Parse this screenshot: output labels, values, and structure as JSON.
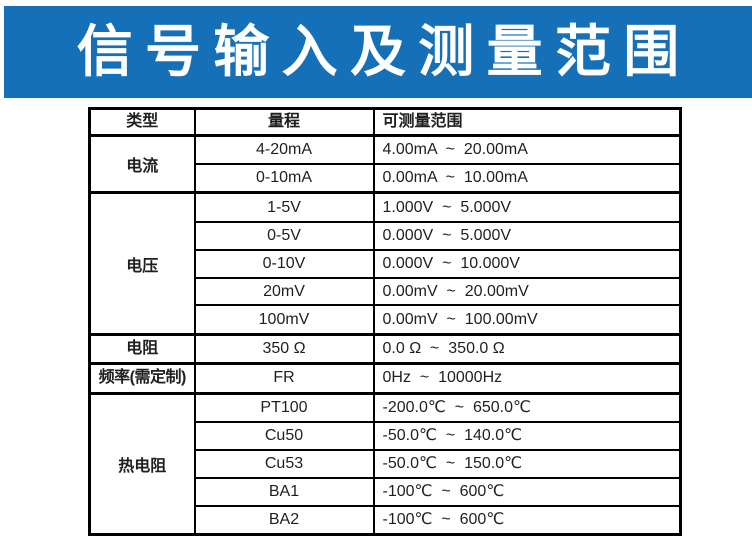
{
  "banner": {
    "title": "信号输入及测量范围"
  },
  "colors": {
    "banner_blue": "#1570b8",
    "title_white": "#ffffff",
    "border_black": "#000000",
    "text_dark": "#1f1f1f"
  },
  "table": {
    "headers": [
      "类型",
      "量程",
      "可测量范围"
    ],
    "rows": [
      {
        "type": "电流",
        "rowspan": 2,
        "range": "4-20mA",
        "measurable": "4.00mA  ~  20.00mA"
      },
      {
        "range": "0-10mA",
        "measurable": "0.00mA  ~  10.00mA"
      },
      {
        "type": "电压",
        "rowspan": 5,
        "range": "1-5V",
        "measurable": "1.000V  ~  5.000V"
      },
      {
        "range": "0-5V",
        "measurable": "0.000V  ~  5.000V"
      },
      {
        "range": "0-10V",
        "measurable": "0.000V  ~  10.000V"
      },
      {
        "range": "20mV",
        "measurable": "0.00mV  ~  20.00mV"
      },
      {
        "range": "100mV",
        "measurable": "0.00mV  ~  100.00mV"
      },
      {
        "type": "电阻",
        "rowspan": 1,
        "range": "350 Ω",
        "measurable": "0.0 Ω  ~  350.0 Ω"
      },
      {
        "type": "频率(需定制)",
        "rowspan": 1,
        "range": "FR",
        "measurable": "0Hz  ~  10000Hz"
      },
      {
        "type": "热电阻",
        "rowspan": 5,
        "range": "PT100",
        "measurable": "-200.0℃  ~  650.0℃"
      },
      {
        "range": "Cu50",
        "measurable": "-50.0℃  ~  140.0℃"
      },
      {
        "range": "Cu53",
        "measurable": "-50.0℃  ~  150.0℃"
      },
      {
        "range": "BA1",
        "measurable": "-100℃  ~  600℃"
      },
      {
        "range": "BA2",
        "measurable": "-100℃  ~  600℃"
      }
    ]
  }
}
